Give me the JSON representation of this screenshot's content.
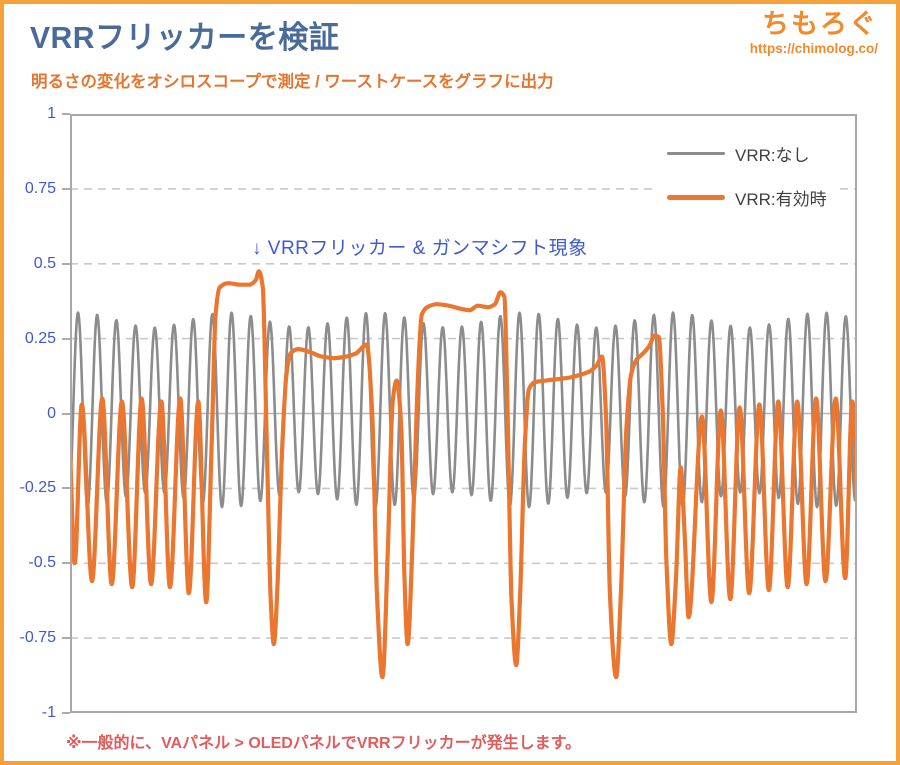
{
  "page": {
    "title": "VRRフリッカーを検証",
    "subtitle": "明るさの変化をオシロスコープで測定 / ワーストケースをグラフに出力",
    "footnote": "※一般的に、VAパネル > OLEDパネルでVRRフリッカーが発生します。",
    "brand": {
      "name": "ちもろぐ",
      "url": "https://chimolog.co/"
    }
  },
  "colors": {
    "frame_orange": "#f6a13c",
    "brand_orange": "#ef8a2f",
    "subtitle_orange": "#e6752f",
    "title_steel_blue": "#4a6b99",
    "axis_label_blue": "#3d59d6",
    "annotation_blue": "#3d59d6",
    "footnote_red": "#e25b5b",
    "gridline_gray": "#c9c9c9",
    "zero_line_gray": "#b7b7b7",
    "plot_border_gray": "#a8a8a8",
    "series_gray": "#8c8c8c",
    "series_orange": "#ea7630"
  },
  "chart_data": {
    "type": "line",
    "title": "VRRフリッカーを検証",
    "xlabel": "",
    "ylabel": "",
    "ylim": [
      -1,
      1
    ],
    "yticks": [
      1,
      0.75,
      0.5,
      0.25,
      0,
      -0.25,
      -0.5,
      -0.75,
      -1
    ],
    "ytick_labels": [
      "1",
      "0.75",
      "0.5",
      "0.25",
      "0",
      "-0.25",
      "-0.5",
      "-0.75",
      "-1"
    ],
    "x_range_normalized": [
      0,
      1
    ],
    "x_tick_labels": [],
    "grid": "horizontal dashed lines at 0.25 steps, solid line at 0, no vertical grid",
    "legend_position": "top-right inside plot",
    "annotation": "↓ VRRフリッカー & ガンマシフト現象",
    "series": [
      {
        "name": "VRR:なし",
        "color": "#8c8c8c",
        "stroke_width": 2.6,
        "waveform": {
          "kind": "sine",
          "cycles": 41,
          "mean": 0.012,
          "amplitude": 0.3,
          "amp_modulation": 0.025,
          "amp_mod_cycles": 5.3,
          "phase": -0.167
        }
      },
      {
        "name": "VRR:有効時",
        "color": "#ea7630",
        "stroke_width": 4.2,
        "waveform": {
          "kind": "keypoints",
          "description": "normalized x (0-1) and brightness value; oscillation ~0.05/-0.58 interrupted by flicker plateaus at ~0.43/0.36/0.21/0.11 with deep dips to -0.77..-0.88",
          "points": [
            [
              0.0,
              -0.12
            ],
            [
              0.006,
              -0.5
            ],
            [
              0.015,
              0.03
            ],
            [
              0.028,
              -0.56
            ],
            [
              0.041,
              0.05
            ],
            [
              0.053,
              -0.57
            ],
            [
              0.066,
              0.04
            ],
            [
              0.079,
              -0.58
            ],
            [
              0.091,
              0.05
            ],
            [
              0.103,
              -0.57
            ],
            [
              0.116,
              0.04
            ],
            [
              0.127,
              -0.58
            ],
            [
              0.14,
              0.05
            ],
            [
              0.151,
              -0.6
            ],
            [
              0.163,
              0.04
            ],
            [
              0.173,
              -0.63
            ],
            [
              0.18,
              -0.1
            ],
            [
              0.185,
              0.33
            ],
            [
              0.19,
              0.42
            ],
            [
              0.201,
              0.435
            ],
            [
              0.216,
              0.43
            ],
            [
              0.228,
              0.43
            ],
            [
              0.236,
              0.445
            ],
            [
              0.24,
              0.475
            ],
            [
              0.245,
              0.42
            ],
            [
              0.25,
              -0.1
            ],
            [
              0.255,
              -0.62
            ],
            [
              0.259,
              -0.77
            ],
            [
              0.264,
              -0.55
            ],
            [
              0.269,
              -0.15
            ],
            [
              0.275,
              0.13
            ],
            [
              0.28,
              0.2
            ],
            [
              0.29,
              0.215
            ],
            [
              0.305,
              0.205
            ],
            [
              0.32,
              0.19
            ],
            [
              0.336,
              0.185
            ],
            [
              0.351,
              0.19
            ],
            [
              0.363,
              0.2
            ],
            [
              0.377,
              0.23
            ],
            [
              0.384,
              0.0
            ],
            [
              0.39,
              -0.6
            ],
            [
              0.397,
              -0.88
            ],
            [
              0.404,
              -0.45
            ],
            [
              0.41,
              0.04
            ],
            [
              0.415,
              0.11
            ],
            [
              0.421,
              -0.05
            ],
            [
              0.425,
              -0.55
            ],
            [
              0.429,
              -0.77
            ],
            [
              0.435,
              -0.45
            ],
            [
              0.441,
              0.05
            ],
            [
              0.447,
              0.33
            ],
            [
              0.454,
              0.355
            ],
            [
              0.466,
              0.365
            ],
            [
              0.481,
              0.36
            ],
            [
              0.496,
              0.35
            ],
            [
              0.508,
              0.345
            ],
            [
              0.518,
              0.36
            ],
            [
              0.531,
              0.355
            ],
            [
              0.54,
              0.365
            ],
            [
              0.547,
              0.405
            ],
            [
              0.552,
              0.39
            ],
            [
              0.556,
              0.0
            ],
            [
              0.561,
              -0.62
            ],
            [
              0.567,
              -0.84
            ],
            [
              0.572,
              -0.6
            ],
            [
              0.578,
              -0.1
            ],
            [
              0.583,
              0.08
            ],
            [
              0.591,
              0.105
            ],
            [
              0.605,
              0.11
            ],
            [
              0.62,
              0.115
            ],
            [
              0.635,
              0.12
            ],
            [
              0.649,
              0.13
            ],
            [
              0.66,
              0.14
            ],
            [
              0.669,
              0.16
            ],
            [
              0.676,
              0.19
            ],
            [
              0.681,
              0.0
            ],
            [
              0.686,
              -0.6
            ],
            [
              0.694,
              -0.88
            ],
            [
              0.7,
              -0.6
            ],
            [
              0.707,
              -0.05
            ],
            [
              0.713,
              0.13
            ],
            [
              0.72,
              0.18
            ],
            [
              0.728,
              0.2
            ],
            [
              0.736,
              0.225
            ],
            [
              0.743,
              0.26
            ],
            [
              0.748,
              0.255
            ],
            [
              0.753,
              0.02
            ],
            [
              0.758,
              -0.5
            ],
            [
              0.764,
              -0.77
            ],
            [
              0.77,
              -0.55
            ],
            [
              0.776,
              -0.18
            ],
            [
              0.781,
              -0.4
            ],
            [
              0.786,
              -0.68
            ],
            [
              0.803,
              -0.01
            ],
            [
              0.815,
              -0.63
            ],
            [
              0.827,
              0.01
            ],
            [
              0.839,
              -0.62
            ],
            [
              0.851,
              0.02
            ],
            [
              0.863,
              -0.6
            ],
            [
              0.876,
              0.03
            ],
            [
              0.888,
              -0.59
            ],
            [
              0.9,
              0.04
            ],
            [
              0.912,
              -0.58
            ],
            [
              0.924,
              0.04
            ],
            [
              0.936,
              -0.57
            ],
            [
              0.948,
              0.05
            ],
            [
              0.96,
              -0.56
            ],
            [
              0.973,
              0.05
            ],
            [
              0.985,
              -0.55
            ],
            [
              0.994,
              0.04
            ],
            [
              1.0,
              -0.28
            ]
          ]
        }
      }
    ]
  }
}
